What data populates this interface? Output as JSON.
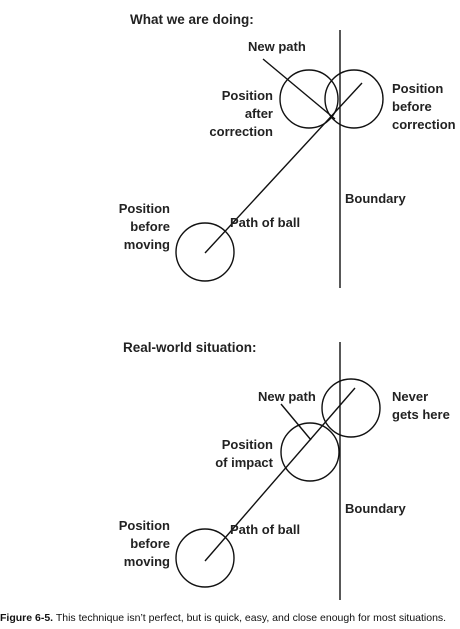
{
  "top": {
    "heading": "What we are doing:",
    "new_path": "New path",
    "after_line1": "Position",
    "after_line2": "after",
    "after_line3": "correction",
    "before_corr_line1": "Position",
    "before_corr_line2": "before",
    "before_corr_line3": "correction",
    "boundary": "Boundary",
    "start_line1": "Position",
    "start_line2": "before",
    "start_line3": "moving",
    "path_of_ball": "Path of ball"
  },
  "bottom": {
    "heading": "Real-world situation:",
    "new_path": "New path",
    "never_line1": "Never",
    "never_line2": "gets here",
    "impact_line1": "Position",
    "impact_line2": "of impact",
    "boundary": "Boundary",
    "start_line1": "Position",
    "start_line2": "before",
    "start_line3": "moving",
    "path_of_ball": "Path of ball"
  },
  "caption": {
    "number": "Figure 6-5.",
    "text": " This technique isn’t perfect, but is quick, easy, and close enough for most situations."
  }
}
